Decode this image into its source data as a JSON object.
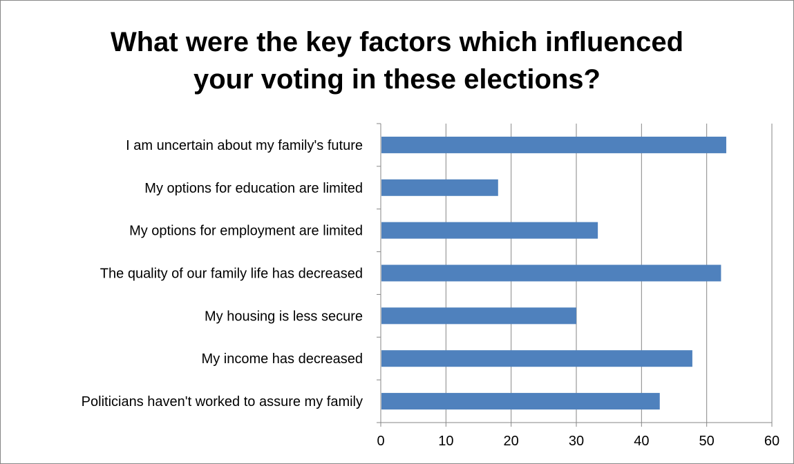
{
  "chart_data": {
    "type": "bar",
    "orientation": "horizontal",
    "title_lines": [
      "What were the key factors which influenced",
      "your voting in these elections?"
    ],
    "categories": [
      "I am uncertain about my family's future",
      "My options for education are limited",
      "My options for employment are limited",
      "The quality of our family life has decreased",
      "My housing is less secure",
      "My income has decreased",
      "Politicians haven't worked to assure my family"
    ],
    "values": [
      53,
      18,
      33.3,
      52.2,
      30,
      47.8,
      42.8
    ],
    "xlim": [
      0,
      60
    ],
    "xticks": [
      "0",
      "10",
      "20",
      "30",
      "40",
      "50",
      "60"
    ],
    "grid": "vertical",
    "legend": "none",
    "bar_color": "#4F81BD"
  }
}
